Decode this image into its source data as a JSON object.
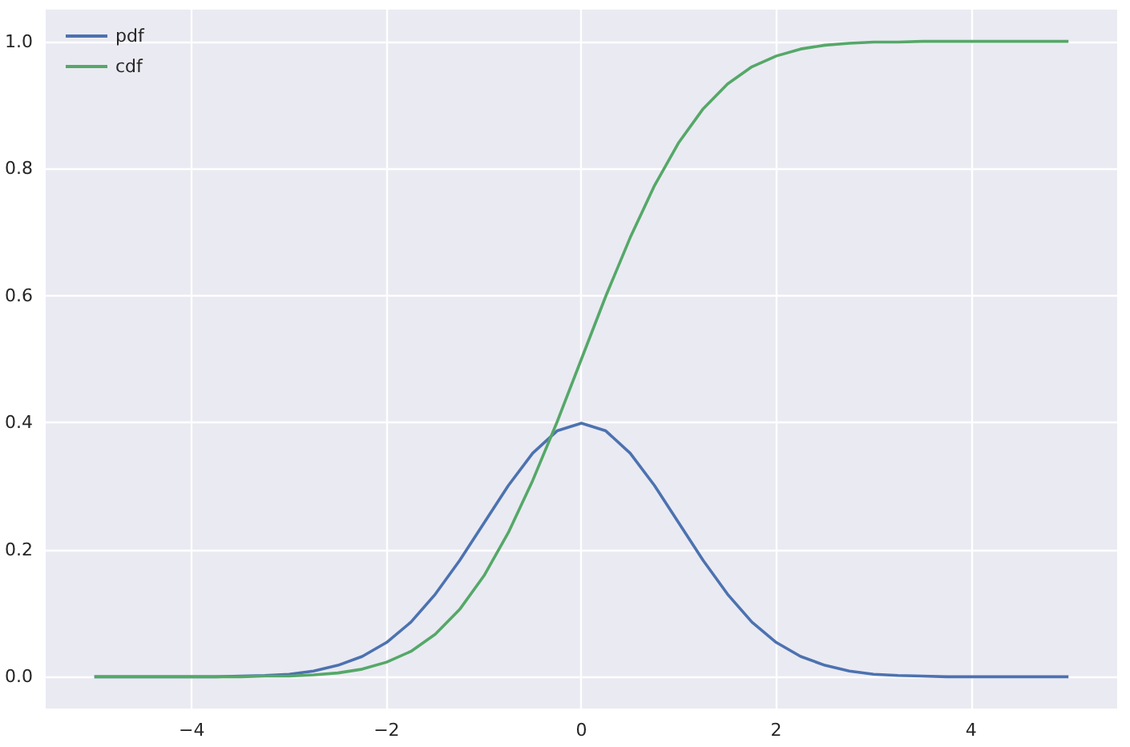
{
  "chart_data": {
    "type": "line",
    "x": [
      -5,
      -4.75,
      -4.5,
      -4.25,
      -4,
      -3.75,
      -3.5,
      -3.25,
      -3,
      -2.75,
      -2.5,
      -2.25,
      -2,
      -1.75,
      -1.5,
      -1.25,
      -1,
      -0.75,
      -0.5,
      -0.25,
      0,
      0.25,
      0.5,
      0.75,
      1,
      1.25,
      1.5,
      1.75,
      2,
      2.25,
      2.5,
      2.75,
      3,
      3.25,
      3.5,
      3.75,
      4,
      4.25,
      4.5,
      4.75,
      5
    ],
    "series": [
      {
        "name": "pdf",
        "color": "#4c72b0",
        "values": [
          0,
          0,
          0,
          0,
          0,
          0,
          0.001,
          0.002,
          0.004,
          0.009,
          0.018,
          0.032,
          0.054,
          0.086,
          0.13,
          0.183,
          0.242,
          0.301,
          0.352,
          0.387,
          0.399,
          0.387,
          0.352,
          0.301,
          0.242,
          0.183,
          0.13,
          0.086,
          0.054,
          0.032,
          0.018,
          0.009,
          0.004,
          0.002,
          0.001,
          0,
          0,
          0,
          0,
          0,
          0
        ]
      },
      {
        "name": "cdf",
        "color": "#55a868",
        "values": [
          0,
          0,
          0,
          0,
          0,
          0,
          0,
          0.001,
          0.001,
          0.003,
          0.006,
          0.012,
          0.023,
          0.04,
          0.067,
          0.106,
          0.159,
          0.227,
          0.309,
          0.401,
          0.5,
          0.599,
          0.691,
          0.773,
          0.841,
          0.894,
          0.933,
          0.96,
          0.977,
          0.988,
          0.994,
          0.997,
          0.999,
          0.999,
          1,
          1,
          1,
          1,
          1,
          1,
          1
        ]
      }
    ],
    "xlim": [
      -5.5,
      5.5
    ],
    "xticks": [
      {
        "value": -4,
        "label": "−4"
      },
      {
        "value": -2,
        "label": "−2"
      },
      0,
      2,
      4
    ],
    "ylim": [
      -0.05,
      1.05
    ],
    "yticks": [
      {
        "value": 0,
        "label": "0.0"
      },
      0.2,
      0.4,
      0.6,
      0.8,
      {
        "value": 1,
        "label": "1.0"
      }
    ],
    "grid": true,
    "legend": "top left",
    "marker": "none",
    "line_style": "solid"
  }
}
